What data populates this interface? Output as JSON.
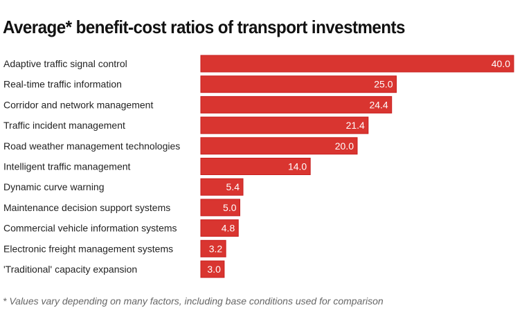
{
  "chart_data": {
    "type": "bar",
    "orientation": "horizontal",
    "title": "Average* benefit-cost ratios of transport investments",
    "footnote": "* Values vary depending on many factors, including base conditions used for comparison",
    "xlabel": "",
    "ylabel": "",
    "xlim": [
      0,
      40
    ],
    "grid": false,
    "legend": "none",
    "bar_color": "#d93530",
    "label_color": "#ffffff",
    "categories": [
      "Adaptive traffic signal control",
      "Real-time traffic information",
      "Corridor and network management",
      "Traffic incident management",
      "Road weather management technologies",
      "Intelligent traffic management",
      "Dynamic curve warning",
      "Maintenance decision support systems",
      "Commercial vehicle information systems",
      "Electronic freight management systems",
      "'Traditional' capacity expansion"
    ],
    "values": [
      40.0,
      25.0,
      24.4,
      21.4,
      20.0,
      14.0,
      5.4,
      5.0,
      4.8,
      3.2,
      3.0
    ],
    "value_labels": [
      "40.0",
      "25.0",
      "24.4",
      "21.4",
      "20.0",
      "14.0",
      "5.4",
      "5.0",
      "4.8",
      "3.2",
      "3.0"
    ]
  }
}
